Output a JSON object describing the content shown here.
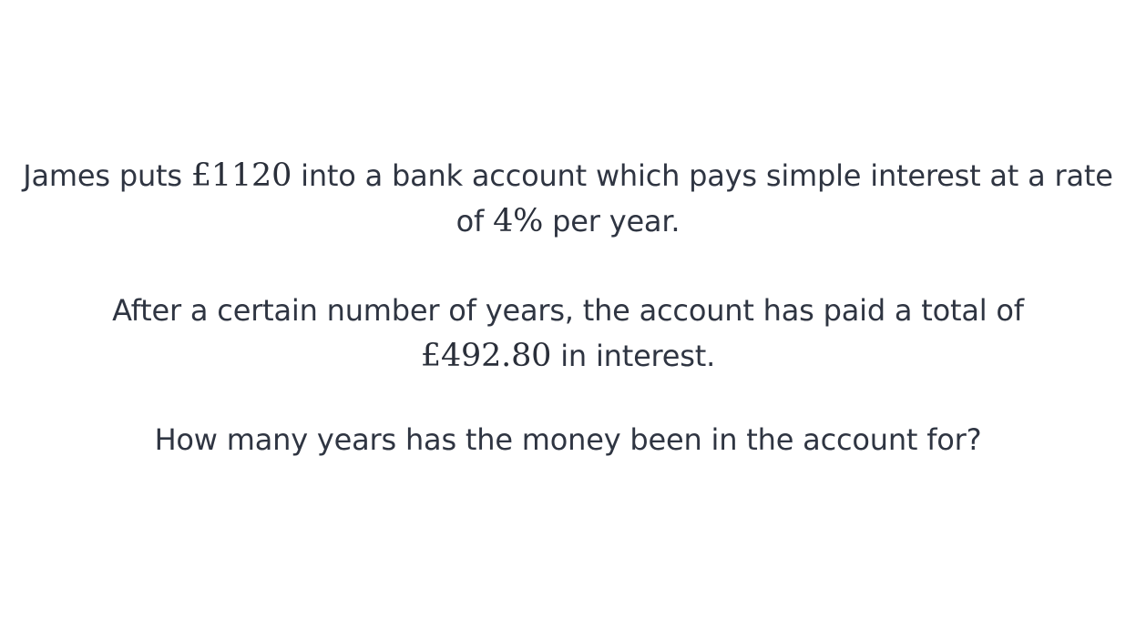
{
  "problem": {
    "p1": {
      "before": "James puts ",
      "principal": "£1120",
      "middle": " into a bank account which pays simple interest at a rate of ",
      "rate": "4%",
      "after": " per year."
    },
    "p2": {
      "before": "After a certain number of years, the account has paid a total of ",
      "interest": "£492.80",
      "after": " in interest."
    },
    "p3": {
      "question": "How many years has the money been in the account for?"
    }
  }
}
